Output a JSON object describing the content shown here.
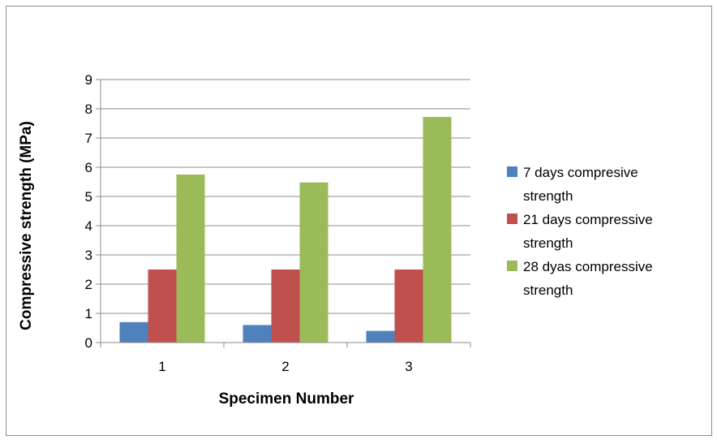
{
  "chart_data": {
    "type": "bar",
    "title": "",
    "xlabel": "Specimen Number",
    "ylabel": "Compressive strength (MPa)",
    "categories": [
      "1",
      "2",
      "3"
    ],
    "ylim": [
      0,
      9
    ],
    "yticks": [
      "0",
      "1",
      "2",
      "3",
      "4",
      "5",
      "6",
      "7",
      "8",
      "9"
    ],
    "grid": true,
    "legend_position": "right",
    "series": [
      {
        "name": "7 days compresive strength",
        "name_lines": [
          "7 days compresive",
          "strength"
        ],
        "color": "#4f81bd",
        "values": [
          0.7,
          0.6,
          0.4
        ]
      },
      {
        "name": "21 days compressive strength",
        "name_lines": [
          "21 days compressive",
          "strength"
        ],
        "color": "#c0504d",
        "values": [
          2.5,
          2.5,
          2.5
        ]
      },
      {
        "name": "28 dyas compressive strength",
        "name_lines": [
          "28 dyas compressive",
          "strength"
        ],
        "color": "#9bbb59",
        "values": [
          5.75,
          5.48,
          7.72
        ]
      }
    ]
  }
}
